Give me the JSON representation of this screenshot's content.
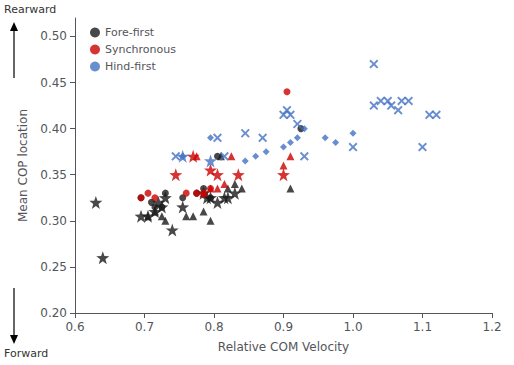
{
  "chart_data": {
    "type": "scatter",
    "xlabel": "Relative COM Velocity",
    "ylabel": "Mean COP location",
    "xlim": [
      0.6,
      1.2
    ],
    "ylim": [
      0.2,
      0.52
    ],
    "xticks": [
      0.6,
      0.7,
      0.8,
      0.9,
      {
        "value": 1.0,
        "label": "1.0"
      },
      1.1,
      1.2
    ],
    "yticks": [
      {
        "value": 0.2,
        "label": "0.20"
      },
      0.25,
      {
        "value": 0.3,
        "label": "0.30"
      },
      0.35,
      {
        "value": 0.4,
        "label": "0.40"
      },
      0.45,
      {
        "value": 0.5,
        "label": "0.50"
      }
    ],
    "legend": "upper left",
    "annotations": [
      "Rearward",
      "Forward"
    ],
    "series": [
      {
        "name": "Fore-first",
        "color": "#1a1a1a",
        "marker": "circle",
        "x": [
          0.695,
          0.71,
          0.715,
          0.725,
          0.73,
          0.755,
          0.775,
          0.785,
          0.795,
          0.805,
          0.925
        ],
        "values": [
          0.325,
          0.32,
          0.315,
          0.315,
          0.33,
          0.325,
          0.33,
          0.335,
          0.325,
          0.37,
          0.4
        ]
      },
      {
        "name": "Fore-first",
        "color": "#1a1a1a",
        "marker": "triangle",
        "x": [
          0.705,
          0.715,
          0.725,
          0.73,
          0.76,
          0.77,
          0.785,
          0.795,
          0.81,
          0.82,
          0.83,
          0.84,
          0.91
        ],
        "values": [
          0.305,
          0.31,
          0.305,
          0.3,
          0.305,
          0.305,
          0.31,
          0.3,
          0.37,
          0.335,
          0.34,
          0.335,
          0.335
        ]
      },
      {
        "name": "Fore-first",
        "color": "#1a1a1a",
        "marker": "star",
        "x": [
          0.63,
          0.64,
          0.695,
          0.705,
          0.715,
          0.72,
          0.725,
          0.73,
          0.74,
          0.755,
          0.785,
          0.79,
          0.795,
          0.805,
          0.815,
          0.82,
          0.83
        ],
        "values": [
          0.32,
          0.26,
          0.305,
          0.305,
          0.31,
          0.32,
          0.315,
          0.325,
          0.29,
          0.315,
          0.33,
          0.325,
          0.325,
          0.32,
          0.325,
          0.325,
          0.33
        ]
      },
      {
        "name": "Synchronous",
        "color": "#cc0000",
        "marker": "circle",
        "x": [
          0.695,
          0.705,
          0.715,
          0.76,
          0.775,
          0.785,
          0.795,
          0.905
        ],
        "values": [
          0.325,
          0.33,
          0.325,
          0.33,
          0.33,
          0.33,
          0.335,
          0.44
        ]
      },
      {
        "name": "Synchronous",
        "color": "#cc0000",
        "marker": "triangle",
        "x": [
          0.775,
          0.785,
          0.795,
          0.805,
          0.815,
          0.825,
          0.9,
          0.91
        ],
        "values": [
          0.37,
          0.33,
          0.335,
          0.335,
          0.34,
          0.37,
          0.36,
          0.37
        ]
      },
      {
        "name": "Synchronous",
        "color": "#cc0000",
        "marker": "star",
        "x": [
          0.745,
          0.77,
          0.795,
          0.805,
          0.835,
          0.9
        ],
        "values": [
          0.35,
          0.37,
          0.355,
          0.35,
          0.35,
          0.35
        ]
      },
      {
        "name": "Hind-first",
        "color": "#4472c4",
        "marker": "diamond",
        "x": [
          0.755,
          0.795,
          0.845,
          0.86,
          0.875,
          0.9,
          0.91,
          0.92,
          0.93,
          0.96,
          0.975,
          1.0
        ],
        "values": [
          0.37,
          0.39,
          0.365,
          0.37,
          0.375,
          0.38,
          0.385,
          0.39,
          0.4,
          0.39,
          0.385,
          0.395
        ]
      },
      {
        "name": "Hind-first",
        "color": "#4472c4",
        "marker": "x",
        "x": [
          0.745,
          0.805,
          0.815,
          0.845,
          0.87,
          0.9,
          0.905,
          0.91,
          0.92,
          0.93,
          1.0,
          1.03,
          1.04,
          1.05,
          1.055,
          1.065,
          1.07,
          1.08,
          1.1,
          1.11,
          1.12
        ],
        "values": [
          0.37,
          0.39,
          0.37,
          0.395,
          0.39,
          0.415,
          0.42,
          0.415,
          0.405,
          0.37,
          0.38,
          0.425,
          0.43,
          0.43,
          0.425,
          0.42,
          0.43,
          0.43,
          0.38,
          0.415,
          0.415
        ]
      },
      {
        "name": "Hind-first",
        "color": "#4472c4",
        "marker": "star",
        "x": [
          0.755,
          0.795
        ],
        "values": [
          0.37,
          0.365
        ]
      },
      {
        "name": "Hind-first",
        "color": "#4472c4",
        "marker": "x",
        "x": [
          1.03
        ],
        "values": [
          0.47
        ]
      }
    ]
  }
}
